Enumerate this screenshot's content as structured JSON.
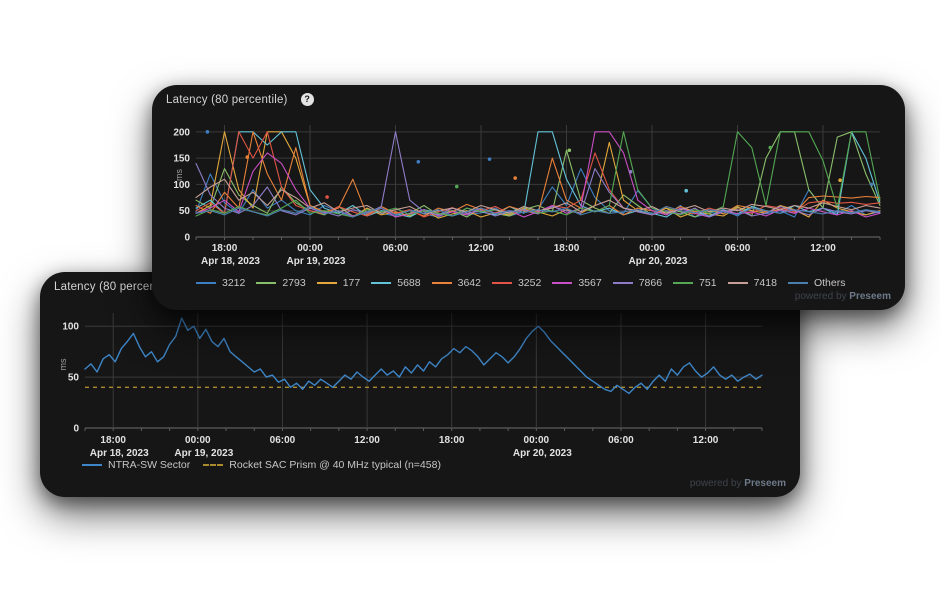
{
  "ui": {
    "help_glyph": "?",
    "powered_prefix": "powered by",
    "powered_brand": "Preseem"
  },
  "chart_data": [
    {
      "id": "multi-series-latency",
      "type": "line",
      "title": "Latency (80 percentile)",
      "ylabel": "ms",
      "ylim": [
        0,
        213
      ],
      "clip_max": 200,
      "y_ticks": [
        0,
        50,
        100,
        150,
        200
      ],
      "x_hours_span": 48,
      "x_ticks": [
        {
          "h": 2,
          "label": "18:00",
          "date": "Apr 18, 2023"
        },
        {
          "h": 8,
          "label": "00:00",
          "date": "Apr 19, 2023"
        },
        {
          "h": 14,
          "label": "06:00"
        },
        {
          "h": 20,
          "label": "12:00"
        },
        {
          "h": 26,
          "label": "18:00"
        },
        {
          "h": 32,
          "label": "00:00",
          "date": "Apr 20, 2023"
        },
        {
          "h": 38,
          "label": "06:00"
        },
        {
          "h": 44,
          "label": "12:00"
        }
      ],
      "grid": true,
      "legend_position": "bottom",
      "series": [
        {
          "name": "3212",
          "color": "#3e7fc1",
          "values": [
            48,
            120,
            65,
            45,
            90,
            55,
            70,
            50,
            42,
            60,
            48,
            38,
            55,
            45,
            40,
            52,
            44,
            38,
            50,
            42,
            46,
            55,
            40,
            48,
            52,
            95,
            60,
            130,
            75,
            50,
            45,
            88,
            55,
            42,
            60,
            38,
            45,
            52,
            40,
            58,
            44,
            50,
            38,
            90,
            55,
            45,
            60,
            42,
            48
          ]
        },
        {
          "name": "2793",
          "color": "#8abf6a",
          "values": [
            70,
            55,
            130,
            80,
            60,
            45,
            95,
            65,
            50,
            42,
            58,
            40,
            48,
            55,
            38,
            45,
            60,
            42,
            50,
            38,
            55,
            45,
            40,
            52,
            60,
            48,
            165,
            70,
            55,
            45,
            80,
            60,
            42,
            55,
            48,
            38,
            52,
            44,
            58,
            40,
            150,
            200,
            200,
            90,
            55,
            190,
            200,
            120,
            60
          ]
        },
        {
          "name": "177",
          "color": "#e3a83c",
          "values": [
            45,
            60,
            200,
            90,
            55,
            200,
            200,
            150,
            60,
            45,
            50,
            38,
            55,
            42,
            48,
            40,
            52,
            36,
            44,
            50,
            38,
            46,
            42,
            55,
            48,
            40,
            52,
            45,
            60,
            180,
            70,
            50,
            42,
            55,
            38,
            48,
            44,
            40,
            56,
            50,
            45,
            60,
            52,
            38,
            70,
            55,
            48,
            42,
            50
          ]
        },
        {
          "name": "5688",
          "color": "#62c3d8",
          "values": [
            55,
            70,
            45,
            200,
            200,
            175,
            200,
            200,
            90,
            55,
            45,
            60,
            40,
            50,
            44,
            38,
            52,
            45,
            40,
            55,
            48,
            42,
            58,
            45,
            200,
            200,
            110,
            60,
            48,
            55,
            42,
            50,
            45,
            38,
            55,
            48,
            40,
            52,
            44,
            58,
            50,
            45,
            60,
            48,
            55,
            42,
            200,
            150,
            65
          ]
        },
        {
          "name": "3642",
          "color": "#e8813a",
          "values": [
            60,
            45,
            85,
            55,
            200,
            120,
            70,
            170,
            60,
            48,
            55,
            110,
            42,
            58,
            45,
            50,
            40,
            55,
            48,
            62,
            52,
            45,
            58,
            50,
            44,
            150,
            70,
            55,
            48,
            60,
            42,
            55,
            50,
            45,
            58,
            48,
            52,
            44,
            60,
            55,
            48,
            52,
            45,
            75,
            78,
            76,
            74,
            77,
            75
          ]
        },
        {
          "name": "3252",
          "color": "#e05545",
          "values": [
            50,
            65,
            45,
            200,
            150,
            200,
            95,
            60,
            50,
            44,
            58,
            48,
            40,
            55,
            45,
            52,
            38,
            48,
            56,
            44,
            50,
            58,
            45,
            52,
            48,
            60,
            55,
            70,
            160,
            90,
            55,
            48,
            42,
            58,
            50,
            44,
            55,
            48,
            52,
            45,
            60,
            55,
            48,
            65,
            68,
            64,
            66,
            62,
            65
          ]
        },
        {
          "name": "3567",
          "color": "#c94fc4",
          "values": [
            45,
            55,
            70,
            48,
            125,
            160,
            140,
            90,
            55,
            45,
            50,
            40,
            48,
            55,
            38,
            44,
            52,
            40,
            48,
            42,
            55,
            45,
            50,
            38,
            48,
            60,
            45,
            55,
            200,
            200,
            160,
            70,
            50,
            42,
            55,
            45,
            38,
            50,
            44,
            48,
            40,
            52,
            45,
            55,
            48,
            42,
            50,
            38,
            45
          ]
        },
        {
          "name": "7866",
          "color": "#8f7cc9",
          "values": [
            140,
            80,
            55,
            45,
            60,
            95,
            50,
            42,
            55,
            48,
            40,
            52,
            45,
            58,
            200,
            70,
            48,
            42,
            55,
            45,
            50,
            40,
            48,
            52,
            44,
            58,
            50,
            45,
            130,
            85,
            55,
            48,
            42,
            50,
            44,
            55,
            38,
            48,
            52,
            40,
            45,
            58,
            50,
            42,
            55,
            48,
            44,
            50,
            46
          ]
        },
        {
          "name": "751",
          "color": "#54a854",
          "values": [
            40,
            52,
            45,
            58,
            48,
            42,
            55,
            70,
            45,
            50,
            44,
            38,
            52,
            48,
            55,
            42,
            50,
            45,
            40,
            55,
            48,
            52,
            44,
            58,
            45,
            50,
            42,
            55,
            48,
            60,
            200,
            90,
            55,
            48,
            42,
            52,
            45,
            58,
            200,
            170,
            60,
            200,
            200,
            200,
            145,
            55,
            200,
            200,
            70
          ]
        },
        {
          "name": "7418",
          "color": "#c79f96",
          "values": [
            75,
            95,
            110,
            70,
            85,
            60,
            90,
            75,
            55,
            65,
            48,
            55,
            60,
            45,
            52,
            58,
            44,
            50,
            55,
            48,
            60,
            52,
            45,
            58,
            50,
            55,
            65,
            48,
            60,
            70,
            55,
            50,
            58,
            45,
            52,
            60,
            48,
            55,
            50,
            62,
            58,
            52,
            60,
            55,
            65,
            58,
            52,
            60,
            55
          ]
        },
        {
          "name": "Others",
          "color": "#4a7fae",
          "values": [
            45,
            50,
            42,
            55,
            48,
            40,
            52,
            45,
            58,
            44,
            50,
            38,
            48,
            55,
            42,
            50,
            45,
            52,
            40,
            48,
            55,
            44,
            50,
            46,
            52,
            48,
            55,
            42,
            50,
            45,
            48,
            52,
            44,
            58,
            50,
            46,
            52,
            48,
            42,
            55,
            50,
            45,
            52,
            48,
            44,
            50,
            46,
            52,
            48
          ]
        }
      ],
      "dots": [
        {
          "h": 0.8,
          "v": 200,
          "series": "3212"
        },
        {
          "h": 3.6,
          "v": 152,
          "series": "3642"
        },
        {
          "h": 9.2,
          "v": 76,
          "series": "3252"
        },
        {
          "h": 15.6,
          "v": 143,
          "series": "3212"
        },
        {
          "h": 18.3,
          "v": 96,
          "series": "751"
        },
        {
          "h": 20.6,
          "v": 148,
          "series": "3212"
        },
        {
          "h": 22.4,
          "v": 112,
          "series": "3642"
        },
        {
          "h": 26.2,
          "v": 165,
          "series": "2793"
        },
        {
          "h": 30.5,
          "v": 124,
          "series": "7866"
        },
        {
          "h": 34.4,
          "v": 88,
          "series": "5688"
        },
        {
          "h": 40.3,
          "v": 170,
          "series": "751"
        },
        {
          "h": 45.2,
          "v": 108,
          "series": "177"
        },
        {
          "h": 47.4,
          "v": 100,
          "series": "Others"
        }
      ]
    },
    {
      "id": "sector-latency",
      "type": "line",
      "title": "Latency (80 percentile)",
      "ylabel": "ms",
      "ylim": [
        0,
        113
      ],
      "y_ticks": [
        0,
        50,
        100
      ],
      "x_hours_span": 48,
      "x_ticks": [
        {
          "h": 2,
          "label": "18:00",
          "date": "Apr 18, 2023"
        },
        {
          "h": 8,
          "label": "00:00",
          "date": "Apr 19, 2023"
        },
        {
          "h": 14,
          "label": "06:00"
        },
        {
          "h": 20,
          "label": "12:00"
        },
        {
          "h": 26,
          "label": "18:00"
        },
        {
          "h": 32,
          "label": "00:00",
          "date": "Apr 20, 2023"
        },
        {
          "h": 38,
          "label": "06:00"
        },
        {
          "h": 44,
          "label": "12:00"
        }
      ],
      "grid": true,
      "legend_position": "bottom",
      "series": [
        {
          "name": "NTRA-SW Sector",
          "color": "#3e86c7",
          "values": [
            58,
            63,
            55,
            68,
            72,
            65,
            78,
            85,
            93,
            80,
            70,
            75,
            65,
            70,
            82,
            90,
            108,
            96,
            100,
            88,
            97,
            85,
            80,
            88,
            75,
            70,
            65,
            60,
            55,
            58,
            50,
            52,
            45,
            48,
            40,
            44,
            38,
            46,
            42,
            48,
            44,
            40,
            46,
            52,
            48,
            55,
            50,
            46,
            52,
            58,
            52,
            56,
            50,
            60,
            54,
            62,
            56,
            65,
            60,
            68,
            72,
            78,
            74,
            80,
            76,
            70,
            62,
            68,
            74,
            70,
            64,
            70,
            78,
            88,
            95,
            100,
            94,
            86,
            80,
            74,
            68,
            62,
            56,
            50,
            46,
            42,
            38,
            36,
            42,
            38,
            34,
            40,
            44,
            38,
            46,
            52,
            46,
            58,
            52,
            60,
            64,
            56,
            50,
            54,
            60,
            52,
            48,
            52,
            46,
            50,
            53,
            48,
            52
          ]
        }
      ],
      "reference_line": {
        "name": "Rocket SAC Prism @ 40 MHz typical (n=458)",
        "value": 40,
        "color": "#ab8b2d",
        "style": "dashed"
      }
    }
  ]
}
